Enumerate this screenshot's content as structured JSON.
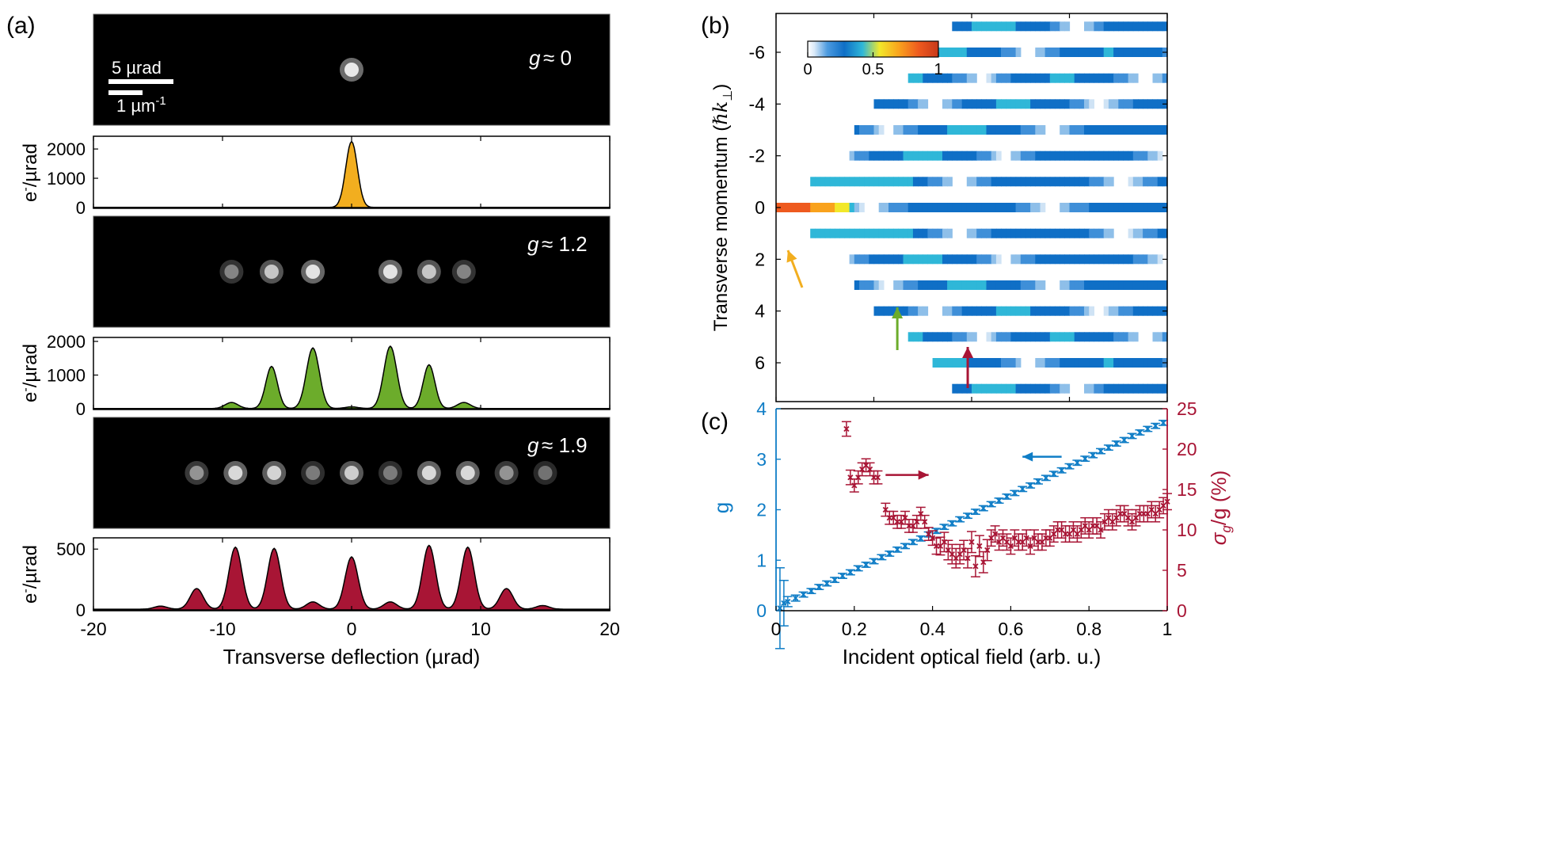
{
  "colors": {
    "orange": "#f2ae1f",
    "green": "#6cac2b",
    "crimson": "#a81535",
    "blue": "#0f7dc6",
    "black": "#000000",
    "white": "#ffffff"
  },
  "panels": {
    "a": {
      "label": "(a)",
      "ylabel_prefix": "e",
      "ylabel_sup": "-",
      "ylabel_suffix": "/µrad",
      "xlabel": "Transverse deflection (µrad)",
      "scale_bar_angle": "5 µrad",
      "scale_bar_k_prefix": "1 µm",
      "scale_bar_k_sup": "-1",
      "g_labels": [
        "g",
        "g",
        "g"
      ],
      "g_values": [
        "≈ 0",
        "≈ 1.2",
        "≈ 1.9"
      ]
    },
    "b": {
      "label": "(b)",
      "ylabel_main": "Transverse momentum (",
      "ylabel_unit": "ℏk",
      "ylabel_sub": "⊥",
      "ylabel_close": ")",
      "colorbar_ticks": [
        "0",
        "0.5",
        "1"
      ]
    },
    "c": {
      "label": "(c)",
      "xlabel": "Incident optical field (arb. u.)",
      "left_ylabel": "g",
      "right_ylabel": "σ",
      "right_ylabel_sub": "g",
      "right_ylabel_rest": "/g (%)"
    }
  },
  "chart_data": [
    {
      "id": "a1",
      "type": "area",
      "title": "g ≈ 0",
      "xlabel": "Transverse deflection (µrad)",
      "ylabel": "e-/µrad",
      "xlim": [
        -20,
        20
      ],
      "ylim": [
        0,
        2300
      ],
      "yticks": [
        "0",
        "1000",
        "2000"
      ],
      "xticks": [
        "-20",
        "-10",
        "0",
        "10",
        "20"
      ],
      "peaks": [
        {
          "x": 0,
          "y": 2250,
          "w": 0.45
        }
      ],
      "image_spots": [
        {
          "x": 0,
          "b": 1.0
        }
      ]
    },
    {
      "id": "a2",
      "type": "area",
      "title": "g ≈ 1.2",
      "xlabel": "Transverse deflection (µrad)",
      "ylabel": "e-/µrad",
      "xlim": [
        -20,
        20
      ],
      "ylim": [
        0,
        2000
      ],
      "yticks": [
        "0",
        "1000",
        "2000"
      ],
      "xticks": [
        "-20",
        "-10",
        "0",
        "10",
        "20"
      ],
      "peaks": [
        {
          "x": -9.3,
          "y": 180,
          "w": 0.5
        },
        {
          "x": -6.2,
          "y": 1250,
          "w": 0.45
        },
        {
          "x": -3.0,
          "y": 1800,
          "w": 0.5
        },
        {
          "x": 0,
          "y": 50,
          "w": 0.5
        },
        {
          "x": 3.0,
          "y": 1850,
          "w": 0.5
        },
        {
          "x": 6.0,
          "y": 1300,
          "w": 0.45
        },
        {
          "x": 8.7,
          "y": 180,
          "w": 0.5
        }
      ],
      "image_spots": [
        {
          "x": -9.3,
          "b": 0.25
        },
        {
          "x": -6.2,
          "b": 0.7
        },
        {
          "x": -3.0,
          "b": 0.95
        },
        {
          "x": 3.0,
          "b": 0.95
        },
        {
          "x": 6.0,
          "b": 0.7
        },
        {
          "x": 8.7,
          "b": 0.25
        }
      ]
    },
    {
      "id": "a3",
      "type": "area",
      "title": "g ≈ 1.9",
      "xlabel": "Transverse deflection (µrad)",
      "ylabel": "e-/µrad",
      "xlim": [
        -20,
        20
      ],
      "ylim": [
        0,
        560
      ],
      "yticks": [
        "0",
        "500"
      ],
      "xticks": [
        "-20",
        "-10",
        "0",
        "10",
        "20"
      ],
      "peaks": [
        {
          "x": -14.8,
          "y": 25,
          "w": 0.5
        },
        {
          "x": -12.0,
          "y": 170,
          "w": 0.5
        },
        {
          "x": -9.0,
          "y": 510,
          "w": 0.5
        },
        {
          "x": -6.0,
          "y": 500,
          "w": 0.5
        },
        {
          "x": -3.0,
          "y": 60,
          "w": 0.5
        },
        {
          "x": 0,
          "y": 430,
          "w": 0.5
        },
        {
          "x": 3.0,
          "y": 60,
          "w": 0.5
        },
        {
          "x": 6.0,
          "y": 525,
          "w": 0.5
        },
        {
          "x": 9.0,
          "y": 510,
          "w": 0.5
        },
        {
          "x": 12.0,
          "y": 170,
          "w": 0.5
        },
        {
          "x": 14.8,
          "y": 30,
          "w": 0.5
        }
      ],
      "image_spots": [
        {
          "x": -12.0,
          "b": 0.35
        },
        {
          "x": -9.0,
          "b": 0.85
        },
        {
          "x": -6.0,
          "b": 0.8
        },
        {
          "x": -3.0,
          "b": 0.2
        },
        {
          "x": 0,
          "b": 0.75
        },
        {
          "x": 3.0,
          "b": 0.2
        },
        {
          "x": 6.0,
          "b": 0.85
        },
        {
          "x": 9.0,
          "b": 0.85
        },
        {
          "x": 12.0,
          "b": 0.35
        },
        {
          "x": 15.0,
          "b": 0.15
        }
      ]
    },
    {
      "id": "b",
      "type": "heatmap",
      "xlabel": "Incident optical field (arb. u.)",
      "ylabel": "Transverse momentum (ℏk⊥)",
      "xlim": [
        0,
        1
      ],
      "ylim": [
        -7.5,
        7.5
      ],
      "yticks": [
        -6,
        -4,
        -2,
        0,
        2,
        4,
        6
      ],
      "ytick_labels": [
        "-6",
        "-4",
        "-2",
        "0",
        "2",
        "4",
        "6"
      ],
      "colorbar": {
        "range": [
          0,
          1
        ],
        "ticks": [
          "0",
          "0.5",
          "1"
        ]
      },
      "arrows": [
        {
          "color": "orange",
          "x": 0.03
        },
        {
          "color": "green",
          "x": 0.31
        },
        {
          "color": "crimson",
          "x": 0.49
        }
      ]
    },
    {
      "id": "c",
      "type": "scatter",
      "xlabel": "Incident optical field (arb. u.)",
      "xlim": [
        0,
        1
      ],
      "xticks": [
        "0",
        "0.2",
        "0.4",
        "0.6",
        "0.8",
        "1"
      ],
      "left_axis": {
        "label": "g",
        "ylim": [
          0,
          4
        ],
        "ticks": [
          "0",
          "1",
          "2",
          "3",
          "4"
        ]
      },
      "right_axis": {
        "label": "σg/g (%)",
        "ylim": [
          0,
          25
        ],
        "ticks": [
          "0",
          "5",
          "10",
          "15",
          "20",
          "25"
        ]
      },
      "series": [
        {
          "name": "g",
          "axis": "left",
          "color": "blue",
          "x": [
            0.01,
            0.02,
            0.03,
            0.05,
            0.07,
            0.09,
            0.11,
            0.13,
            0.15,
            0.17,
            0.19,
            0.21,
            0.23,
            0.25,
            0.27,
            0.29,
            0.31,
            0.33,
            0.35,
            0.37,
            0.39,
            0.41,
            0.43,
            0.45,
            0.47,
            0.49,
            0.51,
            0.53,
            0.55,
            0.57,
            0.59,
            0.61,
            0.63,
            0.65,
            0.67,
            0.69,
            0.71,
            0.73,
            0.75,
            0.77,
            0.79,
            0.81,
            0.83,
            0.85,
            0.87,
            0.89,
            0.91,
            0.93,
            0.95,
            0.97,
            0.99
          ],
          "y": [
            0.05,
            0.15,
            0.18,
            0.25,
            0.32,
            0.39,
            0.47,
            0.54,
            0.61,
            0.69,
            0.76,
            0.84,
            0.91,
            0.98,
            1.06,
            1.13,
            1.21,
            1.28,
            1.36,
            1.43,
            1.51,
            1.58,
            1.66,
            1.73,
            1.81,
            1.88,
            1.96,
            2.03,
            2.11,
            2.18,
            2.26,
            2.33,
            2.41,
            2.48,
            2.56,
            2.63,
            2.71,
            2.78,
            2.86,
            2.93,
            3.01,
            3.08,
            3.16,
            3.23,
            3.31,
            3.38,
            3.46,
            3.53,
            3.6,
            3.66,
            3.72
          ],
          "err": [
            0.8,
            0.45,
            0.1,
            0.06,
            0.05,
            0.05,
            0.05,
            0.05,
            0.05,
            0.05,
            0.05,
            0.05,
            0.05,
            0.05,
            0.05,
            0.05,
            0.05,
            0.05,
            0.05,
            0.05,
            0.05,
            0.05,
            0.05,
            0.05,
            0.05,
            0.05,
            0.05,
            0.05,
            0.05,
            0.05,
            0.05,
            0.05,
            0.05,
            0.05,
            0.05,
            0.05,
            0.05,
            0.05,
            0.05,
            0.05,
            0.05,
            0.05,
            0.05,
            0.05,
            0.05,
            0.05,
            0.05,
            0.05,
            0.05,
            0.05,
            0.05
          ]
        },
        {
          "name": "σg/g",
          "axis": "right",
          "color": "crimson",
          "x": [
            0.18,
            0.19,
            0.2,
            0.21,
            0.22,
            0.23,
            0.24,
            0.25,
            0.26,
            0.28,
            0.29,
            0.3,
            0.31,
            0.32,
            0.33,
            0.34,
            0.35,
            0.36,
            0.37,
            0.38,
            0.39,
            0.4,
            0.41,
            0.42,
            0.43,
            0.44,
            0.45,
            0.46,
            0.47,
            0.48,
            0.49,
            0.5,
            0.51,
            0.52,
            0.53,
            0.54,
            0.55,
            0.56,
            0.57,
            0.58,
            0.59,
            0.6,
            0.61,
            0.62,
            0.63,
            0.64,
            0.65,
            0.66,
            0.67,
            0.68,
            0.69,
            0.7,
            0.71,
            0.72,
            0.73,
            0.74,
            0.75,
            0.76,
            0.77,
            0.78,
            0.79,
            0.8,
            0.81,
            0.82,
            0.83,
            0.84,
            0.85,
            0.86,
            0.87,
            0.88,
            0.89,
            0.9,
            0.91,
            0.92,
            0.93,
            0.94,
            0.95,
            0.96,
            0.97,
            0.98,
            0.99,
            1.0
          ],
          "y": [
            22.5,
            16.5,
            15.5,
            16.5,
            17.5,
            18.0,
            17.5,
            16.5,
            16.5,
            12.5,
            11.5,
            11.5,
            11.0,
            11.0,
            11.5,
            10.5,
            10.5,
            11.0,
            12.0,
            11.0,
            9.5,
            9.0,
            8.0,
            8.0,
            8.5,
            7.5,
            7.0,
            6.5,
            7.0,
            7.5,
            6.5,
            8.5,
            5.5,
            8.0,
            6.0,
            7.5,
            9.0,
            9.5,
            8.5,
            9.0,
            8.5,
            8.0,
            9.0,
            8.5,
            8.5,
            9.0,
            8.0,
            9.0,
            8.5,
            8.5,
            9.0,
            9.0,
            9.5,
            10.0,
            10.0,
            9.5,
            9.5,
            10.0,
            9.5,
            10.0,
            10.5,
            10.0,
            10.5,
            10.5,
            10.0,
            11.0,
            11.5,
            11.0,
            11.5,
            12.0,
            12.0,
            11.5,
            11.0,
            11.5,
            12.0,
            12.0,
            12.0,
            12.5,
            12.0,
            12.5,
            13.0,
            13.5
          ],
          "err": [
            0.9,
            0.9,
            0.8,
            0.8,
            0.8,
            0.8,
            0.8,
            0.8,
            0.8,
            0.8,
            0.8,
            0.8,
            0.8,
            0.8,
            0.8,
            0.8,
            0.8,
            0.8,
            0.8,
            0.8,
            0.8,
            0.9,
            1.0,
            1.1,
            1.2,
            1.2,
            1.2,
            1.2,
            1.2,
            1.2,
            1.2,
            1.3,
            1.3,
            1.3,
            1.3,
            1.3,
            1.0,
            1.0,
            1.0,
            1.0,
            1.0,
            1.0,
            1.0,
            1.0,
            1.0,
            1.0,
            1.0,
            1.0,
            1.0,
            1.0,
            1.0,
            1.0,
            1.0,
            1.0,
            1.0,
            1.0,
            1.0,
            1.0,
            1.0,
            1.0,
            1.0,
            1.0,
            1.0,
            1.0,
            1.0,
            1.0,
            1.0,
            1.0,
            1.0,
            1.0,
            1.0,
            1.0,
            1.0,
            1.0,
            1.0,
            1.0,
            1.0,
            1.0,
            1.0,
            1.0,
            1.0,
            1.0
          ]
        }
      ],
      "arrows": [
        {
          "series": "g",
          "direction": "left",
          "x_from": 0.73,
          "x_to": 0.63,
          "y_left": 3.05
        },
        {
          "series": "σg/g",
          "direction": "right",
          "x_from": 0.28,
          "x_to": 0.39,
          "y_right": 16.8
        }
      ]
    }
  ]
}
